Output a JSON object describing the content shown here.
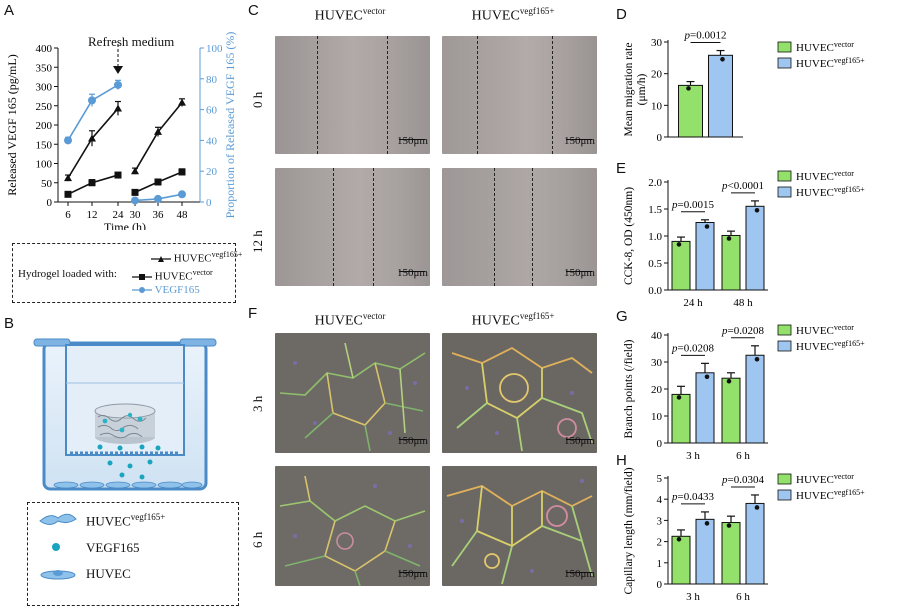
{
  "panels": {
    "A": "A",
    "B": "B",
    "C": "C",
    "D": "D",
    "E": "E",
    "F": "F",
    "G": "G",
    "H": "H"
  },
  "legend_pre": "HUVEC",
  "legend_sup_vegf": "vegf165+",
  "legend_sup_vector": "vector",
  "panelA": {
    "annotation": "Refresh medium",
    "hydrogel_label": "Hydrogel loaded with:",
    "vegf_label": "VEGF165"
  },
  "panelB": {
    "legend_vegf_huvec": "HUVEC",
    "legend_vegf_sup": "vegf165+",
    "legend_vegf165": "VEGF165",
    "legend_huvec": "HUVEC"
  },
  "panelC": {
    "col1_pre": "HUVEC",
    "col1_sup": "vector",
    "col2_pre": "HUVEC",
    "col2_sup": "vegf165+",
    "row1": "0 h",
    "row2": "12 h",
    "scale": "150μm"
  },
  "panelF": {
    "col1_pre": "HUVEC",
    "col1_sup": "vector",
    "col2_pre": "HUVEC",
    "col2_sup": "vegf165+",
    "row1": "3 h",
    "row2": "6 h",
    "scale": "150μm"
  },
  "colors": {
    "green": "#93e06a",
    "blue": "#9ec6f0",
    "lineblue": "#5b9bd5",
    "black": "#111111"
  },
  "chart_data": [
    {
      "id": "A",
      "type": "line",
      "xlabel": "Time (h)",
      "ylabel": "Released VEGF 165 (pg/mL)",
      "y2label": "Proportion of  Released VEGF 165 (%)",
      "xticks": [
        6,
        12,
        24,
        30,
        36,
        48
      ],
      "ylim": [
        0,
        400
      ],
      "yticks": [
        0,
        50,
        100,
        150,
        200,
        250,
        300,
        350,
        400
      ],
      "y2lim": [
        0,
        100
      ],
      "y2ticks": [
        0,
        20,
        40,
        60,
        80,
        100
      ],
      "series": [
        {
          "name": "HUVECvegf165+",
          "segments": [
            [
              [
                6,
                62
              ],
              [
                12,
                165
              ],
              [
                24,
                243
              ]
            ],
            [
              [
                30,
                80
              ],
              [
                36,
                182
              ],
              [
                48,
                258
              ]
            ]
          ],
          "err": [
            [
              8,
              20,
              18
            ],
            [
              8,
              12,
              10
            ]
          ]
        },
        {
          "name": "HUVECvector",
          "segments": [
            [
              [
                6,
                20
              ],
              [
                12,
                50
              ],
              [
                24,
                70
              ]
            ],
            [
              [
                30,
                25
              ],
              [
                36,
                52
              ],
              [
                48,
                78
              ]
            ]
          ],
          "err": [
            [
              4,
              8,
              4
            ],
            [
              4,
              6,
              8
            ]
          ]
        },
        {
          "name": "VEGF165",
          "axis": "right",
          "segments": [
            [
              [
                6,
                40
              ],
              [
                12,
                66
              ],
              [
                24,
                76
              ]
            ],
            [
              [
                30,
                1
              ],
              [
                36,
                2
              ],
              [
                48,
                5
              ]
            ]
          ],
          "err": [
            [
              2,
              4,
              3
            ],
            [
              1,
              1,
              1
            ]
          ]
        }
      ]
    },
    {
      "id": "D",
      "type": "bar",
      "ylabel": "Mean migration rate (μm/h)",
      "ylim": [
        0,
        30
      ],
      "yticks": [
        0,
        10,
        20,
        30
      ],
      "categories": [
        ""
      ],
      "series": [
        {
          "name": "HUVECvector",
          "values": [
            16.3
          ],
          "err": [
            1.2
          ]
        },
        {
          "name": "HUVECvegf165+",
          "values": [
            25.8
          ],
          "err": [
            1.5
          ]
        }
      ],
      "pvalues": [
        "p=0.0012"
      ]
    },
    {
      "id": "E",
      "type": "bar",
      "ylabel": "CCK-8, OD (450nm)",
      "ylim": [
        0,
        2.0
      ],
      "yticks": [
        "0.0",
        "0.5",
        "1.0",
        "1.5",
        "2.0"
      ],
      "categories": [
        "24 h",
        "48 h"
      ],
      "series": [
        {
          "name": "HUVECvector",
          "values": [
            0.9,
            1.01
          ],
          "err": [
            0.08,
            0.08
          ]
        },
        {
          "name": "HUVECvegf165+",
          "values": [
            1.25,
            1.55
          ],
          "err": [
            0.05,
            0.1
          ]
        }
      ],
      "pvalues": [
        "p=0.0015",
        "p<0.0001"
      ]
    },
    {
      "id": "G",
      "type": "bar",
      "ylabel": "Branch points (/field)",
      "ylim": [
        0,
        40
      ],
      "yticks": [
        0,
        10,
        20,
        30,
        40
      ],
      "categories": [
        "3 h",
        "6 h"
      ],
      "series": [
        {
          "name": "HUVECvector",
          "values": [
            18,
            24
          ],
          "err": [
            3,
            2
          ]
        },
        {
          "name": "HUVECvegf165+",
          "values": [
            26,
            32.5
          ],
          "err": [
            3.5,
            3.5
          ]
        }
      ],
      "pvalues": [
        "p=0.0208",
        "p=0.0208"
      ]
    },
    {
      "id": "H",
      "type": "bar",
      "ylabel": "Capillary length (mm/field)",
      "ylim": [
        0,
        5
      ],
      "yticks": [
        0,
        1,
        2,
        3,
        4,
        5
      ],
      "categories": [
        "3 h",
        "6 h"
      ],
      "series": [
        {
          "name": "HUVECvector",
          "values": [
            2.25,
            2.9
          ],
          "err": [
            0.3,
            0.3
          ]
        },
        {
          "name": "HUVECvegf165+",
          "values": [
            3.05,
            3.8
          ],
          "err": [
            0.35,
            0.4
          ]
        }
      ],
      "pvalues": [
        "p=0.0433",
        "p=0.0304"
      ]
    }
  ]
}
